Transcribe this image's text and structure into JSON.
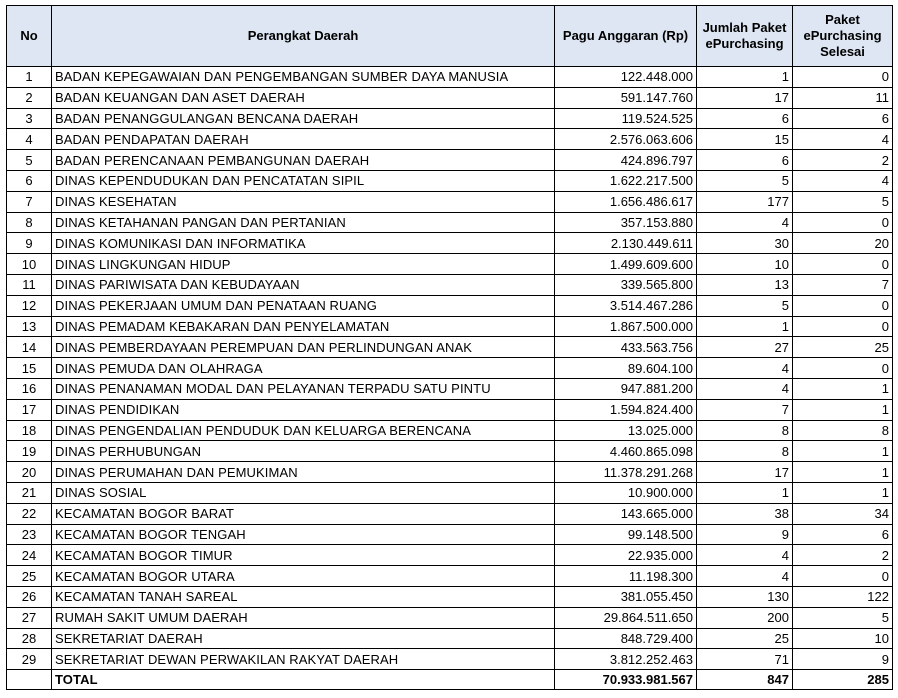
{
  "table": {
    "headers": {
      "no": "No",
      "perangkat": "Perangkat Daerah",
      "pagu": "Pagu Anggaran (Rp)",
      "jumlah": "Jumlah Paket ePurchasing",
      "selesai": "Paket ePurchasing Selesai"
    },
    "rows": [
      {
        "no": "1",
        "name": "BADAN KEPEGAWAIAN DAN PENGEMBANGAN SUMBER DAYA MANUSIA",
        "pagu": "122.448.000",
        "jumlah": "1",
        "selesai": "0"
      },
      {
        "no": "2",
        "name": "BADAN KEUANGAN DAN ASET DAERAH",
        "pagu": "591.147.760",
        "jumlah": "17",
        "selesai": "11"
      },
      {
        "no": "3",
        "name": "BADAN PENANGGULANGAN BENCANA DAERAH",
        "pagu": "119.524.525",
        "jumlah": "6",
        "selesai": "6"
      },
      {
        "no": "4",
        "name": "BADAN PENDAPATAN DAERAH",
        "pagu": "2.576.063.606",
        "jumlah": "15",
        "selesai": "4"
      },
      {
        "no": "5",
        "name": "BADAN PERENCANAAN PEMBANGUNAN DAERAH",
        "pagu": "424.896.797",
        "jumlah": "6",
        "selesai": "2"
      },
      {
        "no": "6",
        "name": "DINAS KEPENDUDUKAN DAN PENCATATAN SIPIL",
        "pagu": "1.622.217.500",
        "jumlah": "5",
        "selesai": "4"
      },
      {
        "no": "7",
        "name": "DINAS KESEHATAN",
        "pagu": "1.656.486.617",
        "jumlah": "177",
        "selesai": "5"
      },
      {
        "no": "8",
        "name": "DINAS KETAHANAN PANGAN DAN PERTANIAN",
        "pagu": "357.153.880",
        "jumlah": "4",
        "selesai": "0"
      },
      {
        "no": "9",
        "name": "DINAS KOMUNIKASI DAN INFORMATIKA",
        "pagu": "2.130.449.611",
        "jumlah": "30",
        "selesai": "20"
      },
      {
        "no": "10",
        "name": "DINAS LINGKUNGAN HIDUP",
        "pagu": "1.499.609.600",
        "jumlah": "10",
        "selesai": "0"
      },
      {
        "no": "11",
        "name": "DINAS PARIWISATA DAN KEBUDAYAAN",
        "pagu": "339.565.800",
        "jumlah": "13",
        "selesai": "7"
      },
      {
        "no": "12",
        "name": "DINAS PEKERJAAN UMUM DAN PENATAAN RUANG",
        "pagu": "3.514.467.286",
        "jumlah": "5",
        "selesai": "0"
      },
      {
        "no": "13",
        "name": "DINAS PEMADAM KEBAKARAN DAN PENYELAMATAN",
        "pagu": "1.867.500.000",
        "jumlah": "1",
        "selesai": "0"
      },
      {
        "no": "14",
        "name": "DINAS PEMBERDAYAAN PEREMPUAN DAN PERLINDUNGAN ANAK",
        "pagu": "433.563.756",
        "jumlah": "27",
        "selesai": "25"
      },
      {
        "no": "15",
        "name": "DINAS PEMUDA DAN OLAHRAGA",
        "pagu": "89.604.100",
        "jumlah": "4",
        "selesai": "0"
      },
      {
        "no": "16",
        "name": "DINAS PENANAMAN MODAL DAN PELAYANAN TERPADU SATU PINTU",
        "pagu": "947.881.200",
        "jumlah": "4",
        "selesai": "1"
      },
      {
        "no": "17",
        "name": "DINAS PENDIDIKAN",
        "pagu": "1.594.824.400",
        "jumlah": "7",
        "selesai": "1"
      },
      {
        "no": "18",
        "name": "DINAS PENGENDALIAN PENDUDUK DAN KELUARGA BERENCANA",
        "pagu": "13.025.000",
        "jumlah": "8",
        "selesai": "8"
      },
      {
        "no": "19",
        "name": "DINAS PERHUBUNGAN",
        "pagu": "4.460.865.098",
        "jumlah": "8",
        "selesai": "1"
      },
      {
        "no": "20",
        "name": "DINAS PERUMAHAN DAN PEMUKIMAN",
        "pagu": "11.378.291.268",
        "jumlah": "17",
        "selesai": "1"
      },
      {
        "no": "21",
        "name": "DINAS SOSIAL",
        "pagu": "10.900.000",
        "jumlah": "1",
        "selesai": "1"
      },
      {
        "no": "22",
        "name": "KECAMATAN BOGOR BARAT",
        "pagu": "143.665.000",
        "jumlah": "38",
        "selesai": "34"
      },
      {
        "no": "23",
        "name": "KECAMATAN BOGOR TENGAH",
        "pagu": "99.148.500",
        "jumlah": "9",
        "selesai": "6"
      },
      {
        "no": "24",
        "name": "KECAMATAN BOGOR TIMUR",
        "pagu": "22.935.000",
        "jumlah": "4",
        "selesai": "2"
      },
      {
        "no": "25",
        "name": "KECAMATAN BOGOR UTARA",
        "pagu": "11.198.300",
        "jumlah": "4",
        "selesai": "0"
      },
      {
        "no": "26",
        "name": "KECAMATAN TANAH SAREAL",
        "pagu": "381.055.450",
        "jumlah": "130",
        "selesai": "122"
      },
      {
        "no": "27",
        "name": "RUMAH SAKIT UMUM DAERAH",
        "pagu": "29.864.511.650",
        "jumlah": "200",
        "selesai": "5"
      },
      {
        "no": "28",
        "name": "SEKRETARIAT DAERAH",
        "pagu": "848.729.400",
        "jumlah": "25",
        "selesai": "10"
      },
      {
        "no": "29",
        "name": "SEKRETARIAT DEWAN PERWAKILAN RAKYAT DAERAH",
        "pagu": "3.812.252.463",
        "jumlah": "71",
        "selesai": "9"
      }
    ],
    "total": {
      "label": "TOTAL",
      "pagu": "70.933.981.567",
      "jumlah": "847",
      "selesai": "285"
    }
  }
}
